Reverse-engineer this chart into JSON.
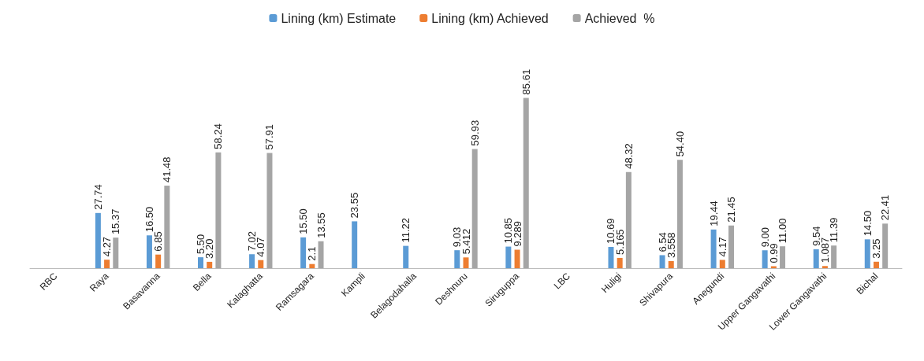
{
  "chart_data": {
    "type": "bar",
    "categories": [
      "RBC",
      "Raya",
      "Basavanna",
      "Bella",
      "Kalaghatta",
      "Ramsagara",
      "Kampli",
      "Belagodahalla",
      "Deshnuru",
      "Siruguppa",
      "LBC",
      "Huligi",
      "Shivapura",
      "Anegundi",
      "Upper Gangavathi",
      "Lower Gangavathi",
      "Bichal"
    ],
    "series": [
      {
        "name": "Lining (km) Estimate",
        "color": "#5b9bd5",
        "values": [
          null,
          27.74,
          16.5,
          5.5,
          7.02,
          15.5,
          23.55,
          11.22,
          9.03,
          10.85,
          null,
          10.69,
          6.54,
          19.44,
          9.0,
          9.54,
          14.5
        ],
        "value_labels": [
          null,
          "27.74",
          "16.50",
          "5.50",
          "7.02",
          "15.50",
          "23.55",
          "11.22",
          "9.03",
          "10.85",
          null,
          "10.69",
          "6.54",
          "19.44",
          "9.00",
          "9.54",
          "14.50"
        ]
      },
      {
        "name": "Lining (km) Achieved",
        "color": "#ed7d31",
        "values": [
          null,
          4.27,
          6.85,
          3.2,
          4.07,
          2.1,
          null,
          null,
          5.412,
          9.289,
          null,
          5.165,
          3.558,
          4.17,
          0.99,
          1.087,
          3.25
        ],
        "value_labels": [
          null,
          "4.27",
          "6.85",
          "3.20",
          "4.07",
          "2.1",
          null,
          null,
          "5.412",
          "9.289",
          null,
          "5.165",
          "3.558",
          "4.17",
          "0.99",
          "1.087",
          "3.25"
        ]
      },
      {
        "name": "Achieved  %",
        "color": "#a5a5a5",
        "values": [
          null,
          15.37,
          41.48,
          58.24,
          57.91,
          13.55,
          null,
          null,
          59.93,
          85.61,
          null,
          48.32,
          54.4,
          21.45,
          11.0,
          11.39,
          22.41
        ],
        "value_labels": [
          null,
          "15.37",
          "41.48",
          "58.24",
          "57.91",
          "13.55",
          null,
          null,
          "59.93",
          "85.61",
          null,
          "48.32",
          "54.40",
          "21.45",
          "11.00",
          "11.39",
          "22.41"
        ]
      }
    ],
    "legend": "top",
    "grid": false
  }
}
